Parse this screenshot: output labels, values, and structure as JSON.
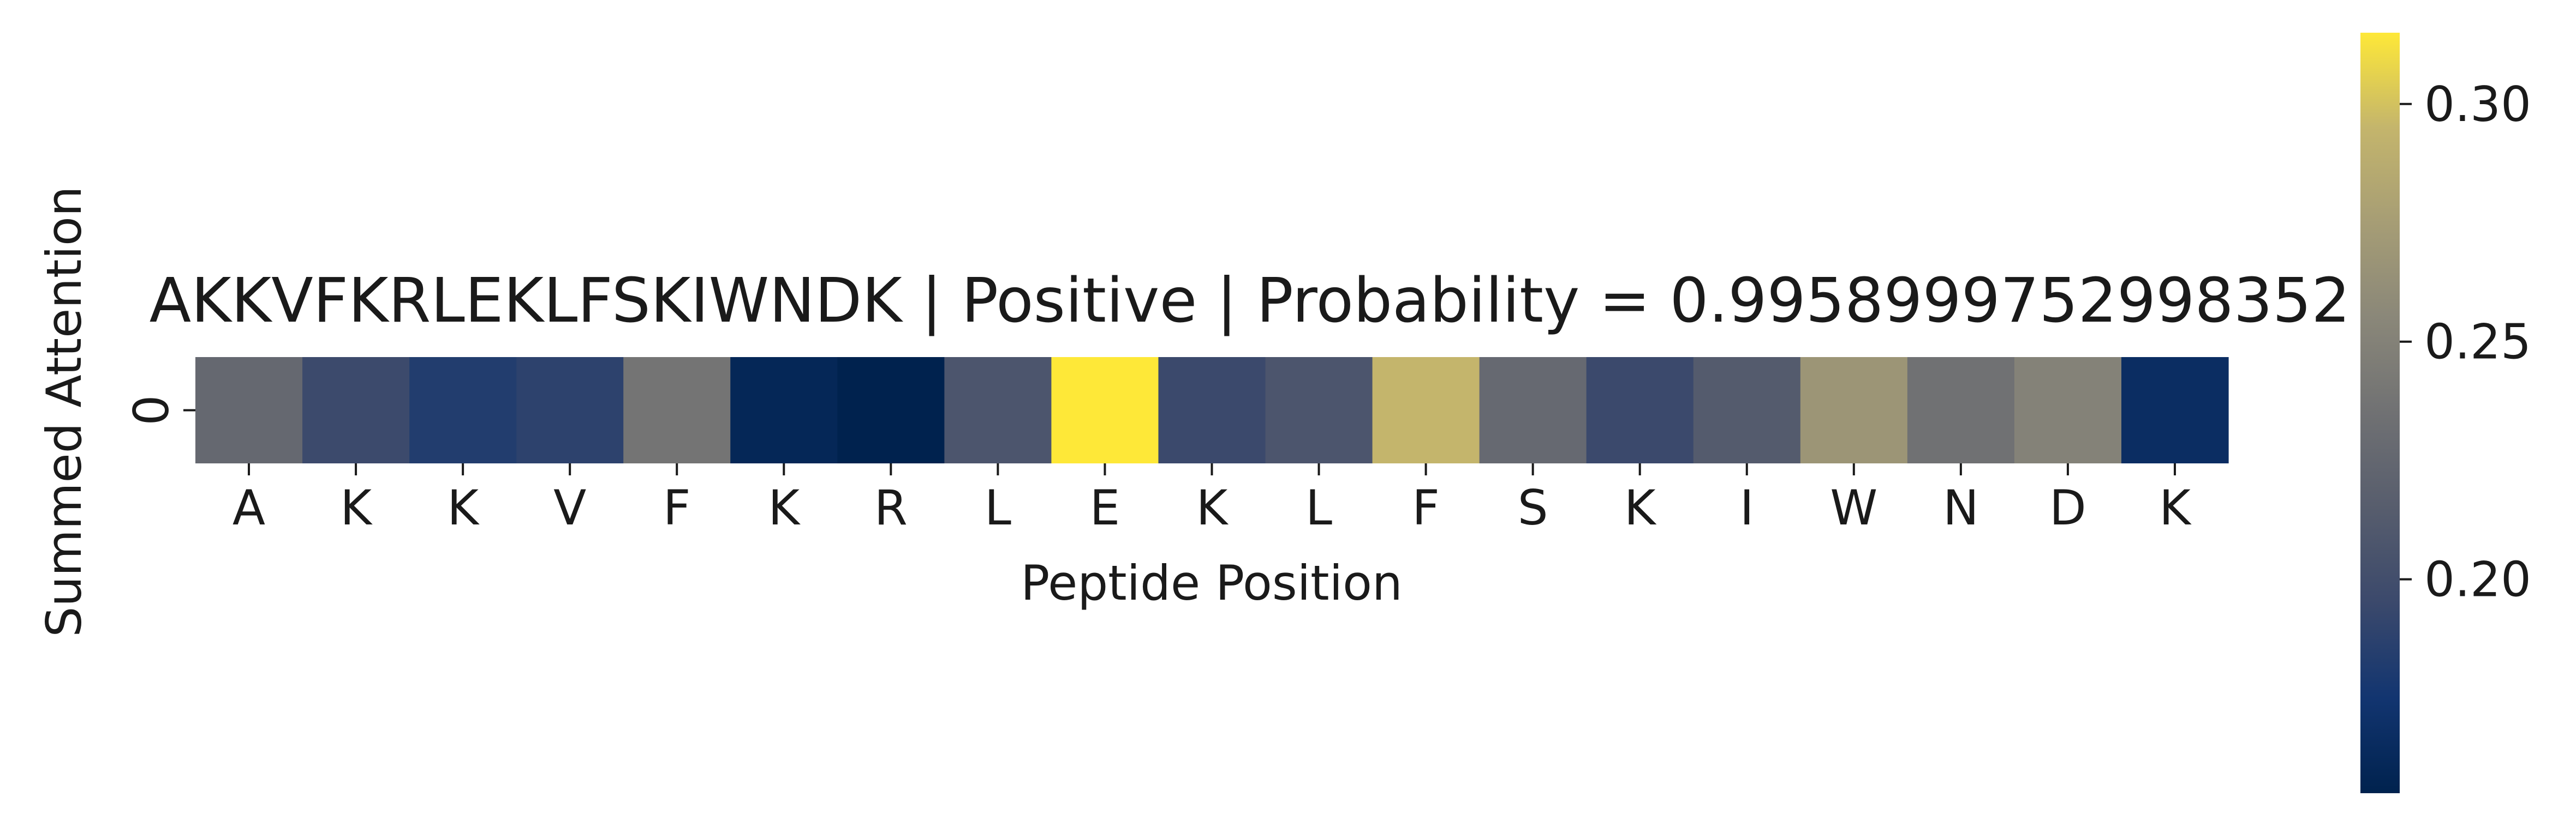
{
  "chart_data": {
    "type": "heatmap",
    "title": "AKKVFKRLEKLFSKIWNDK | Positive | Probability = 0.9958999752998352",
    "xlabel": "Peptide Position",
    "ylabel": "Summed Attention",
    "row_labels": [
      "0"
    ],
    "categories": [
      "A",
      "K",
      "K",
      "V",
      "F",
      "K",
      "R",
      "L",
      "E",
      "K",
      "L",
      "F",
      "S",
      "K",
      "I",
      "W",
      "N",
      "D",
      "K"
    ],
    "values": [
      [
        0.226,
        0.196,
        0.183,
        0.188,
        0.238,
        0.16,
        0.155,
        0.207,
        0.315,
        0.195,
        0.207,
        0.295,
        0.227,
        0.195,
        0.213,
        0.268,
        0.235,
        0.25,
        0.167
      ]
    ],
    "colormap": "cividis",
    "colorbar": {
      "range": [
        0.155,
        0.315
      ],
      "ticks": [
        0.2,
        0.25,
        0.3
      ],
      "tick_labels": [
        "0.20",
        "0.25",
        "0.30"
      ]
    }
  }
}
